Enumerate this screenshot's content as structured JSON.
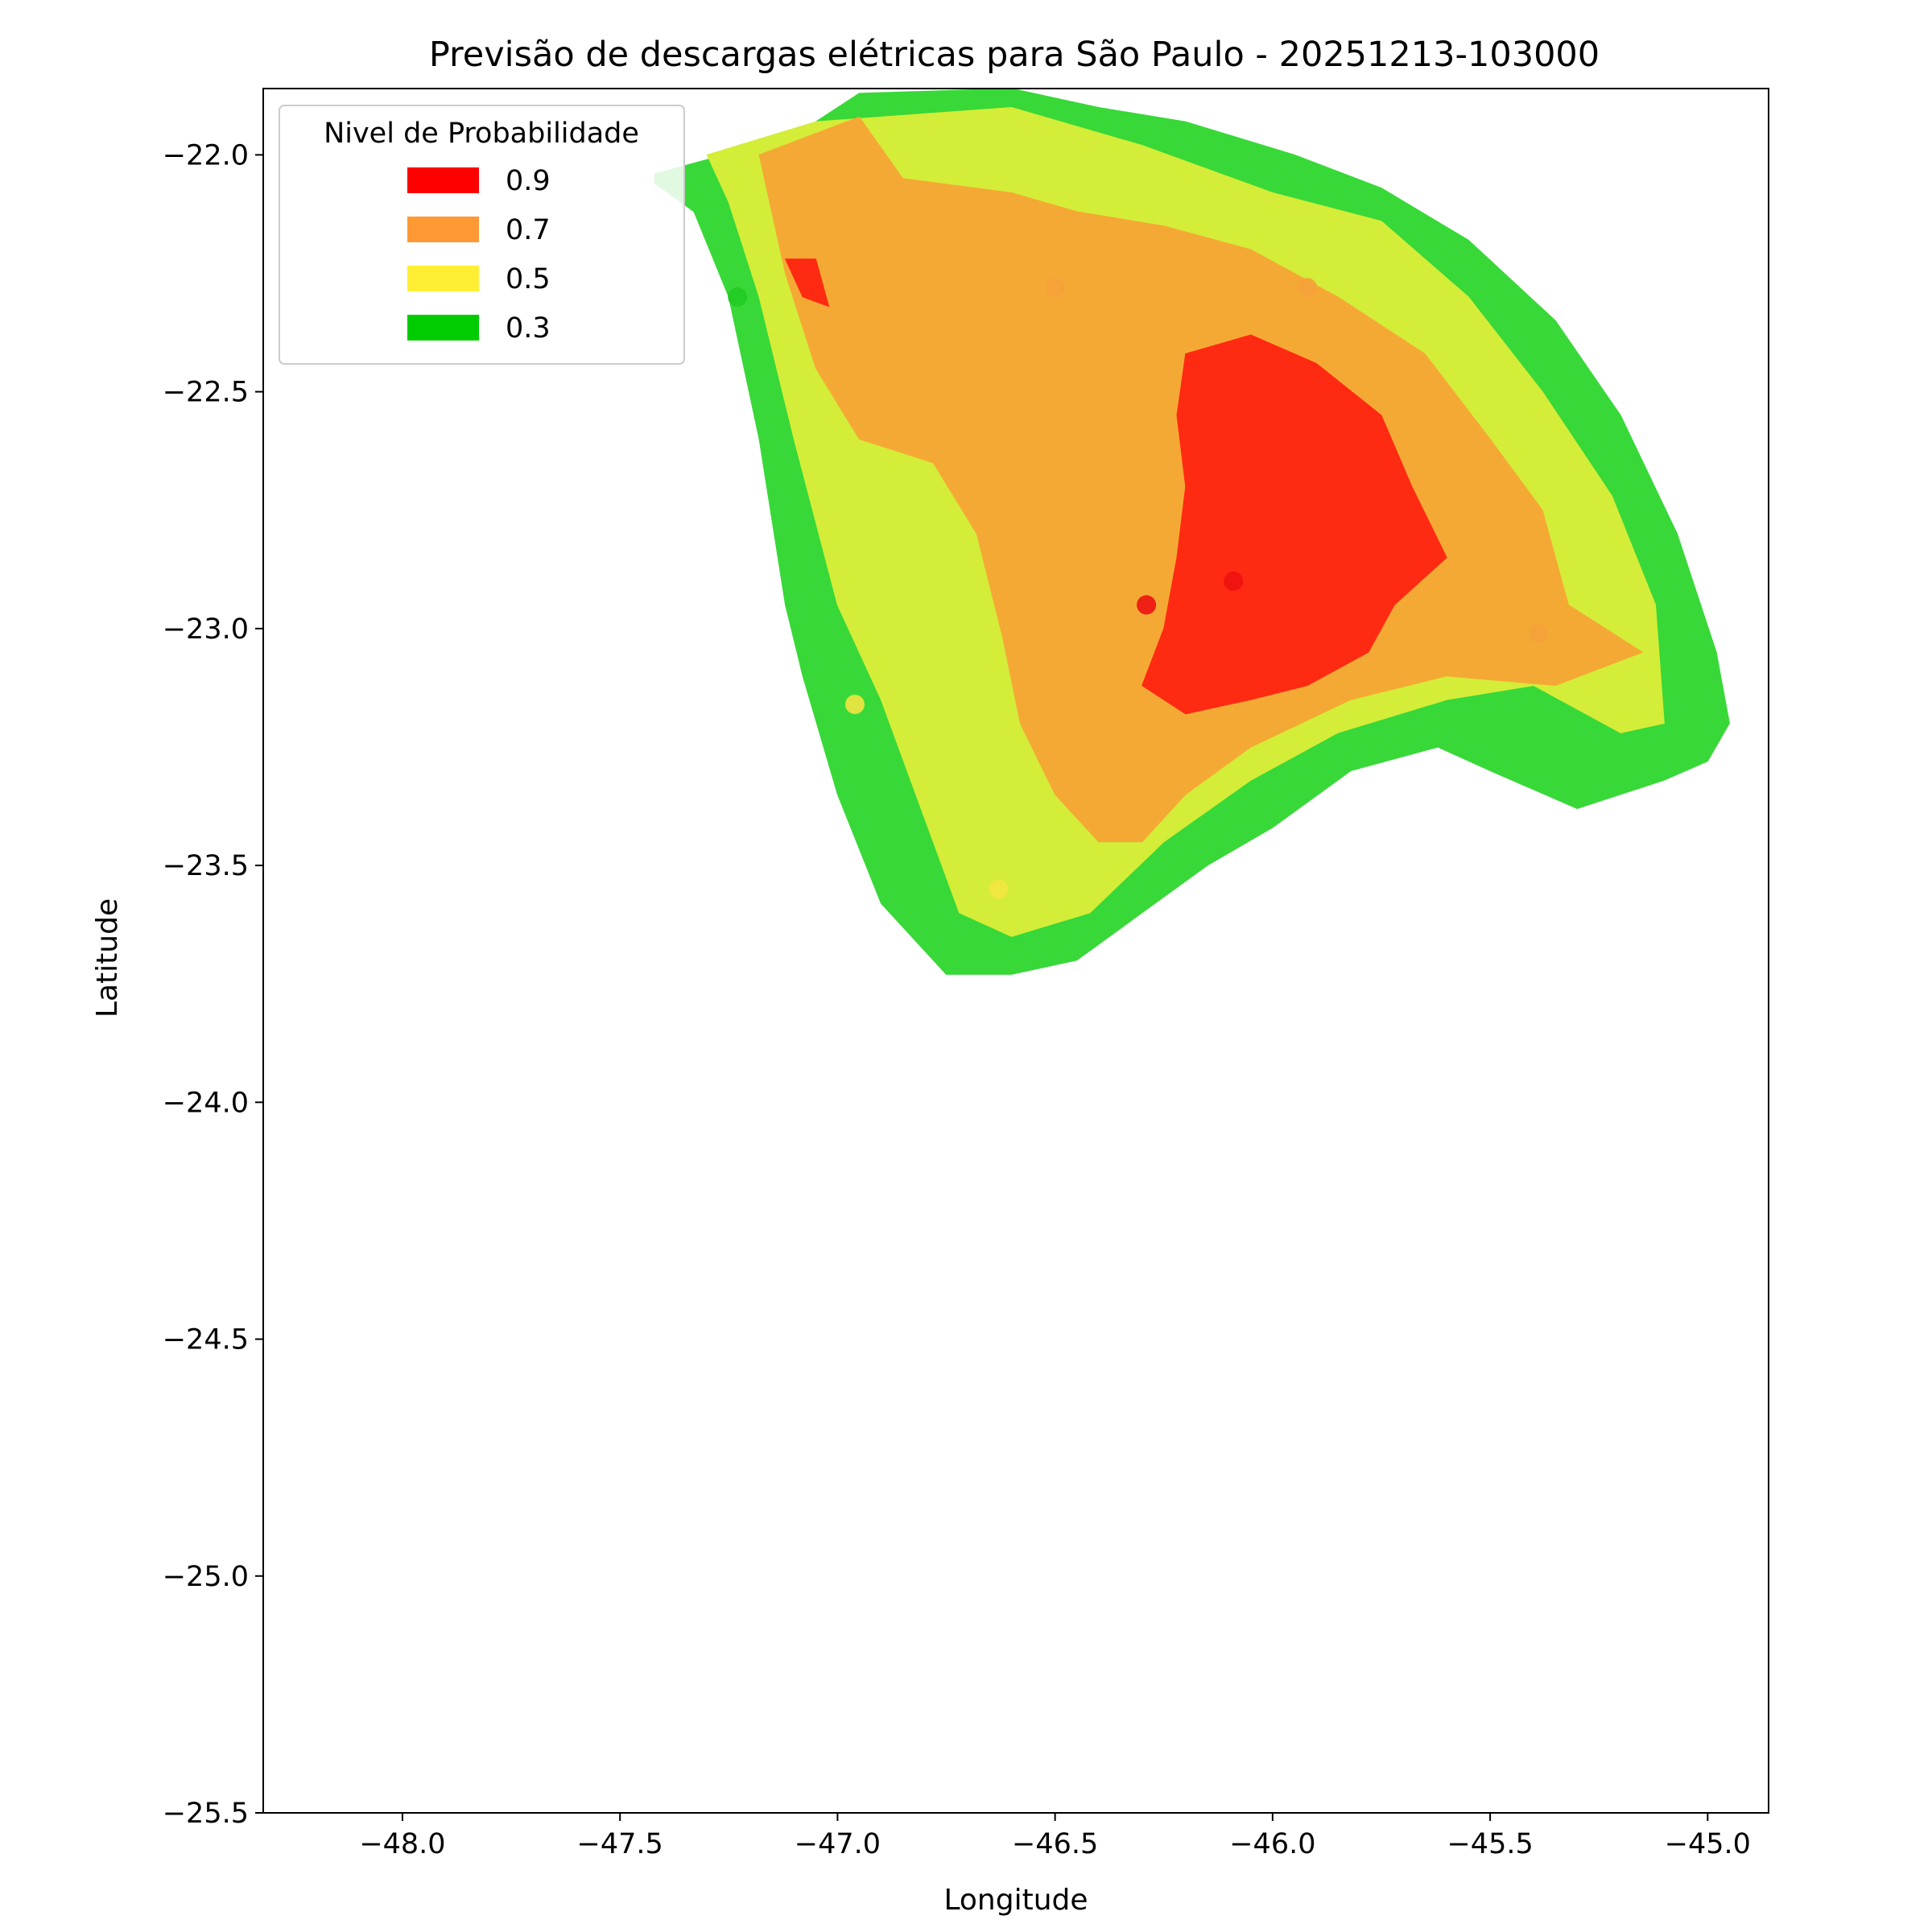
{
  "chart_data": {
    "type": "heatmap",
    "title": "Previsão de descargas elétricas para São Paulo - 20251213-103000",
    "xlabel": "Longitude",
    "ylabel": "Latitude",
    "xlim": [
      -48.32,
      -44.86
    ],
    "ylim": [
      -25.5,
      -21.86
    ],
    "xticks": [
      -48.0,
      -47.5,
      -47.0,
      -46.5,
      -46.0,
      -45.5,
      -45.0
    ],
    "xtick_labels": [
      "−48.0",
      "−47.5",
      "−47.0",
      "−46.5",
      "−46.0",
      "−45.5",
      "−45.0"
    ],
    "yticks": [
      -22.0,
      -22.5,
      -23.0,
      -23.5,
      -24.0,
      -24.5,
      -25.0,
      -25.5
    ],
    "ytick_labels": [
      "−22.0",
      "−22.5",
      "−23.0",
      "−23.5",
      "−24.0",
      "−24.5",
      "−25.0",
      "−25.5"
    ],
    "grid": false,
    "legend": {
      "title": "Nivel de Probabilidade",
      "position": "upper left",
      "entries": [
        {
          "label": "0.9",
          "color": "#ff0000"
        },
        {
          "label": "0.7",
          "color": "#ff9933"
        },
        {
          "label": "0.5",
          "color": "#ffee33"
        },
        {
          "label": "0.3",
          "color": "#00cc00"
        }
      ]
    },
    "levels": [
      {
        "level": 0.3,
        "color": "#38d838",
        "polygon": [
          [
            -47.42,
            -22.04
          ],
          [
            -47.1,
            -21.96
          ],
          [
            -46.95,
            -21.87
          ],
          [
            -46.6,
            -21.86
          ],
          [
            -46.4,
            -21.9
          ],
          [
            -46.2,
            -21.93
          ],
          [
            -45.95,
            -22.0
          ],
          [
            -45.75,
            -22.07
          ],
          [
            -45.55,
            -22.18
          ],
          [
            -45.35,
            -22.35
          ],
          [
            -45.2,
            -22.55
          ],
          [
            -45.07,
            -22.8
          ],
          [
            -44.98,
            -23.05
          ],
          [
            -44.95,
            -23.2
          ],
          [
            -45.0,
            -23.28
          ],
          [
            -45.1,
            -23.32
          ],
          [
            -45.3,
            -23.38
          ],
          [
            -45.5,
            -23.3
          ],
          [
            -45.62,
            -23.25
          ],
          [
            -45.82,
            -23.3
          ],
          [
            -46.0,
            -23.42
          ],
          [
            -46.15,
            -23.5
          ],
          [
            -46.3,
            -23.6
          ],
          [
            -46.45,
            -23.7
          ],
          [
            -46.6,
            -23.73
          ],
          [
            -46.75,
            -23.73
          ],
          [
            -46.9,
            -23.58
          ],
          [
            -47.0,
            -23.35
          ],
          [
            -47.08,
            -23.1
          ],
          [
            -47.12,
            -22.95
          ],
          [
            -47.18,
            -22.6
          ],
          [
            -47.25,
            -22.3
          ],
          [
            -47.33,
            -22.12
          ],
          [
            -47.42,
            -22.06
          ]
        ]
      },
      {
        "level": 0.5,
        "color": "#d4ed38",
        "polygon": [
          [
            -47.3,
            -22.0
          ],
          [
            -47.05,
            -21.93
          ],
          [
            -46.6,
            -21.9
          ],
          [
            -46.3,
            -21.98
          ],
          [
            -46.0,
            -22.08
          ],
          [
            -45.75,
            -22.14
          ],
          [
            -45.55,
            -22.3
          ],
          [
            -45.38,
            -22.5
          ],
          [
            -45.22,
            -22.72
          ],
          [
            -45.12,
            -22.95
          ],
          [
            -45.1,
            -23.2
          ],
          [
            -45.2,
            -23.22
          ],
          [
            -45.4,
            -23.12
          ],
          [
            -45.6,
            -23.15
          ],
          [
            -45.85,
            -23.22
          ],
          [
            -46.05,
            -23.32
          ],
          [
            -46.25,
            -23.45
          ],
          [
            -46.42,
            -23.6
          ],
          [
            -46.6,
            -23.65
          ],
          [
            -46.72,
            -23.6
          ],
          [
            -46.82,
            -23.35
          ],
          [
            -46.9,
            -23.15
          ],
          [
            -47.0,
            -22.95
          ],
          [
            -47.1,
            -22.6
          ],
          [
            -47.18,
            -22.3
          ],
          [
            -47.25,
            -22.1
          ]
        ]
      },
      {
        "level": 0.7,
        "color": "#f5a935",
        "polygon": [
          [
            -47.18,
            -22.0
          ],
          [
            -46.95,
            -21.92
          ],
          [
            -46.85,
            -22.05
          ],
          [
            -46.6,
            -22.08
          ],
          [
            -46.45,
            -22.12
          ],
          [
            -46.25,
            -22.15
          ],
          [
            -46.05,
            -22.2
          ],
          [
            -45.85,
            -22.3
          ],
          [
            -45.65,
            -22.42
          ],
          [
            -45.5,
            -22.6
          ],
          [
            -45.38,
            -22.75
          ],
          [
            -45.32,
            -22.95
          ],
          [
            -45.15,
            -23.05
          ],
          [
            -45.35,
            -23.12
          ],
          [
            -45.6,
            -23.1
          ],
          [
            -45.82,
            -23.15
          ],
          [
            -46.05,
            -23.25
          ],
          [
            -46.2,
            -23.35
          ],
          [
            -46.3,
            -23.45
          ],
          [
            -46.4,
            -23.45
          ],
          [
            -46.5,
            -23.35
          ],
          [
            -46.58,
            -23.2
          ],
          [
            -46.62,
            -23.02
          ],
          [
            -46.68,
            -22.8
          ],
          [
            -46.78,
            -22.65
          ],
          [
            -46.95,
            -22.6
          ],
          [
            -47.05,
            -22.45
          ],
          [
            -47.12,
            -22.25
          ]
        ]
      },
      {
        "level": 0.9,
        "color": "#ff2a12",
        "polygon": [
          [
            -46.2,
            -22.42
          ],
          [
            -46.05,
            -22.38
          ],
          [
            -45.9,
            -22.44
          ],
          [
            -45.75,
            -22.55
          ],
          [
            -45.68,
            -22.7
          ],
          [
            -45.6,
            -22.85
          ],
          [
            -45.72,
            -22.95
          ],
          [
            -45.78,
            -23.05
          ],
          [
            -45.92,
            -23.12
          ],
          [
            -46.05,
            -23.15
          ],
          [
            -46.2,
            -23.18
          ],
          [
            -46.3,
            -23.12
          ],
          [
            -46.25,
            -23.0
          ],
          [
            -46.22,
            -22.85
          ],
          [
            -46.2,
            -22.7
          ],
          [
            -46.22,
            -22.55
          ]
        ]
      },
      {
        "level": 0.9,
        "color": "#ff2a12",
        "polygon": [
          [
            -47.12,
            -22.22
          ],
          [
            -47.05,
            -22.22
          ],
          [
            -47.02,
            -22.32
          ],
          [
            -47.08,
            -22.3
          ]
        ]
      }
    ],
    "stations": [
      {
        "lon": -47.23,
        "lat": -22.3,
        "color": "#22cc22"
      },
      {
        "lon": -46.5,
        "lat": -22.28,
        "color": "#f5a23a"
      },
      {
        "lon": -45.92,
        "lat": -22.28,
        "color": "#f5a23a"
      },
      {
        "lon": -46.29,
        "lat": -22.95,
        "color": "#ee1111"
      },
      {
        "lon": -46.09,
        "lat": -22.9,
        "color": "#ee1111"
      },
      {
        "lon": -45.39,
        "lat": -23.01,
        "color": "#f5a23a"
      },
      {
        "lon": -46.96,
        "lat": -23.16,
        "color": "#f3e642"
      },
      {
        "lon": -46.63,
        "lat": -23.55,
        "color": "#f3e642"
      }
    ]
  }
}
